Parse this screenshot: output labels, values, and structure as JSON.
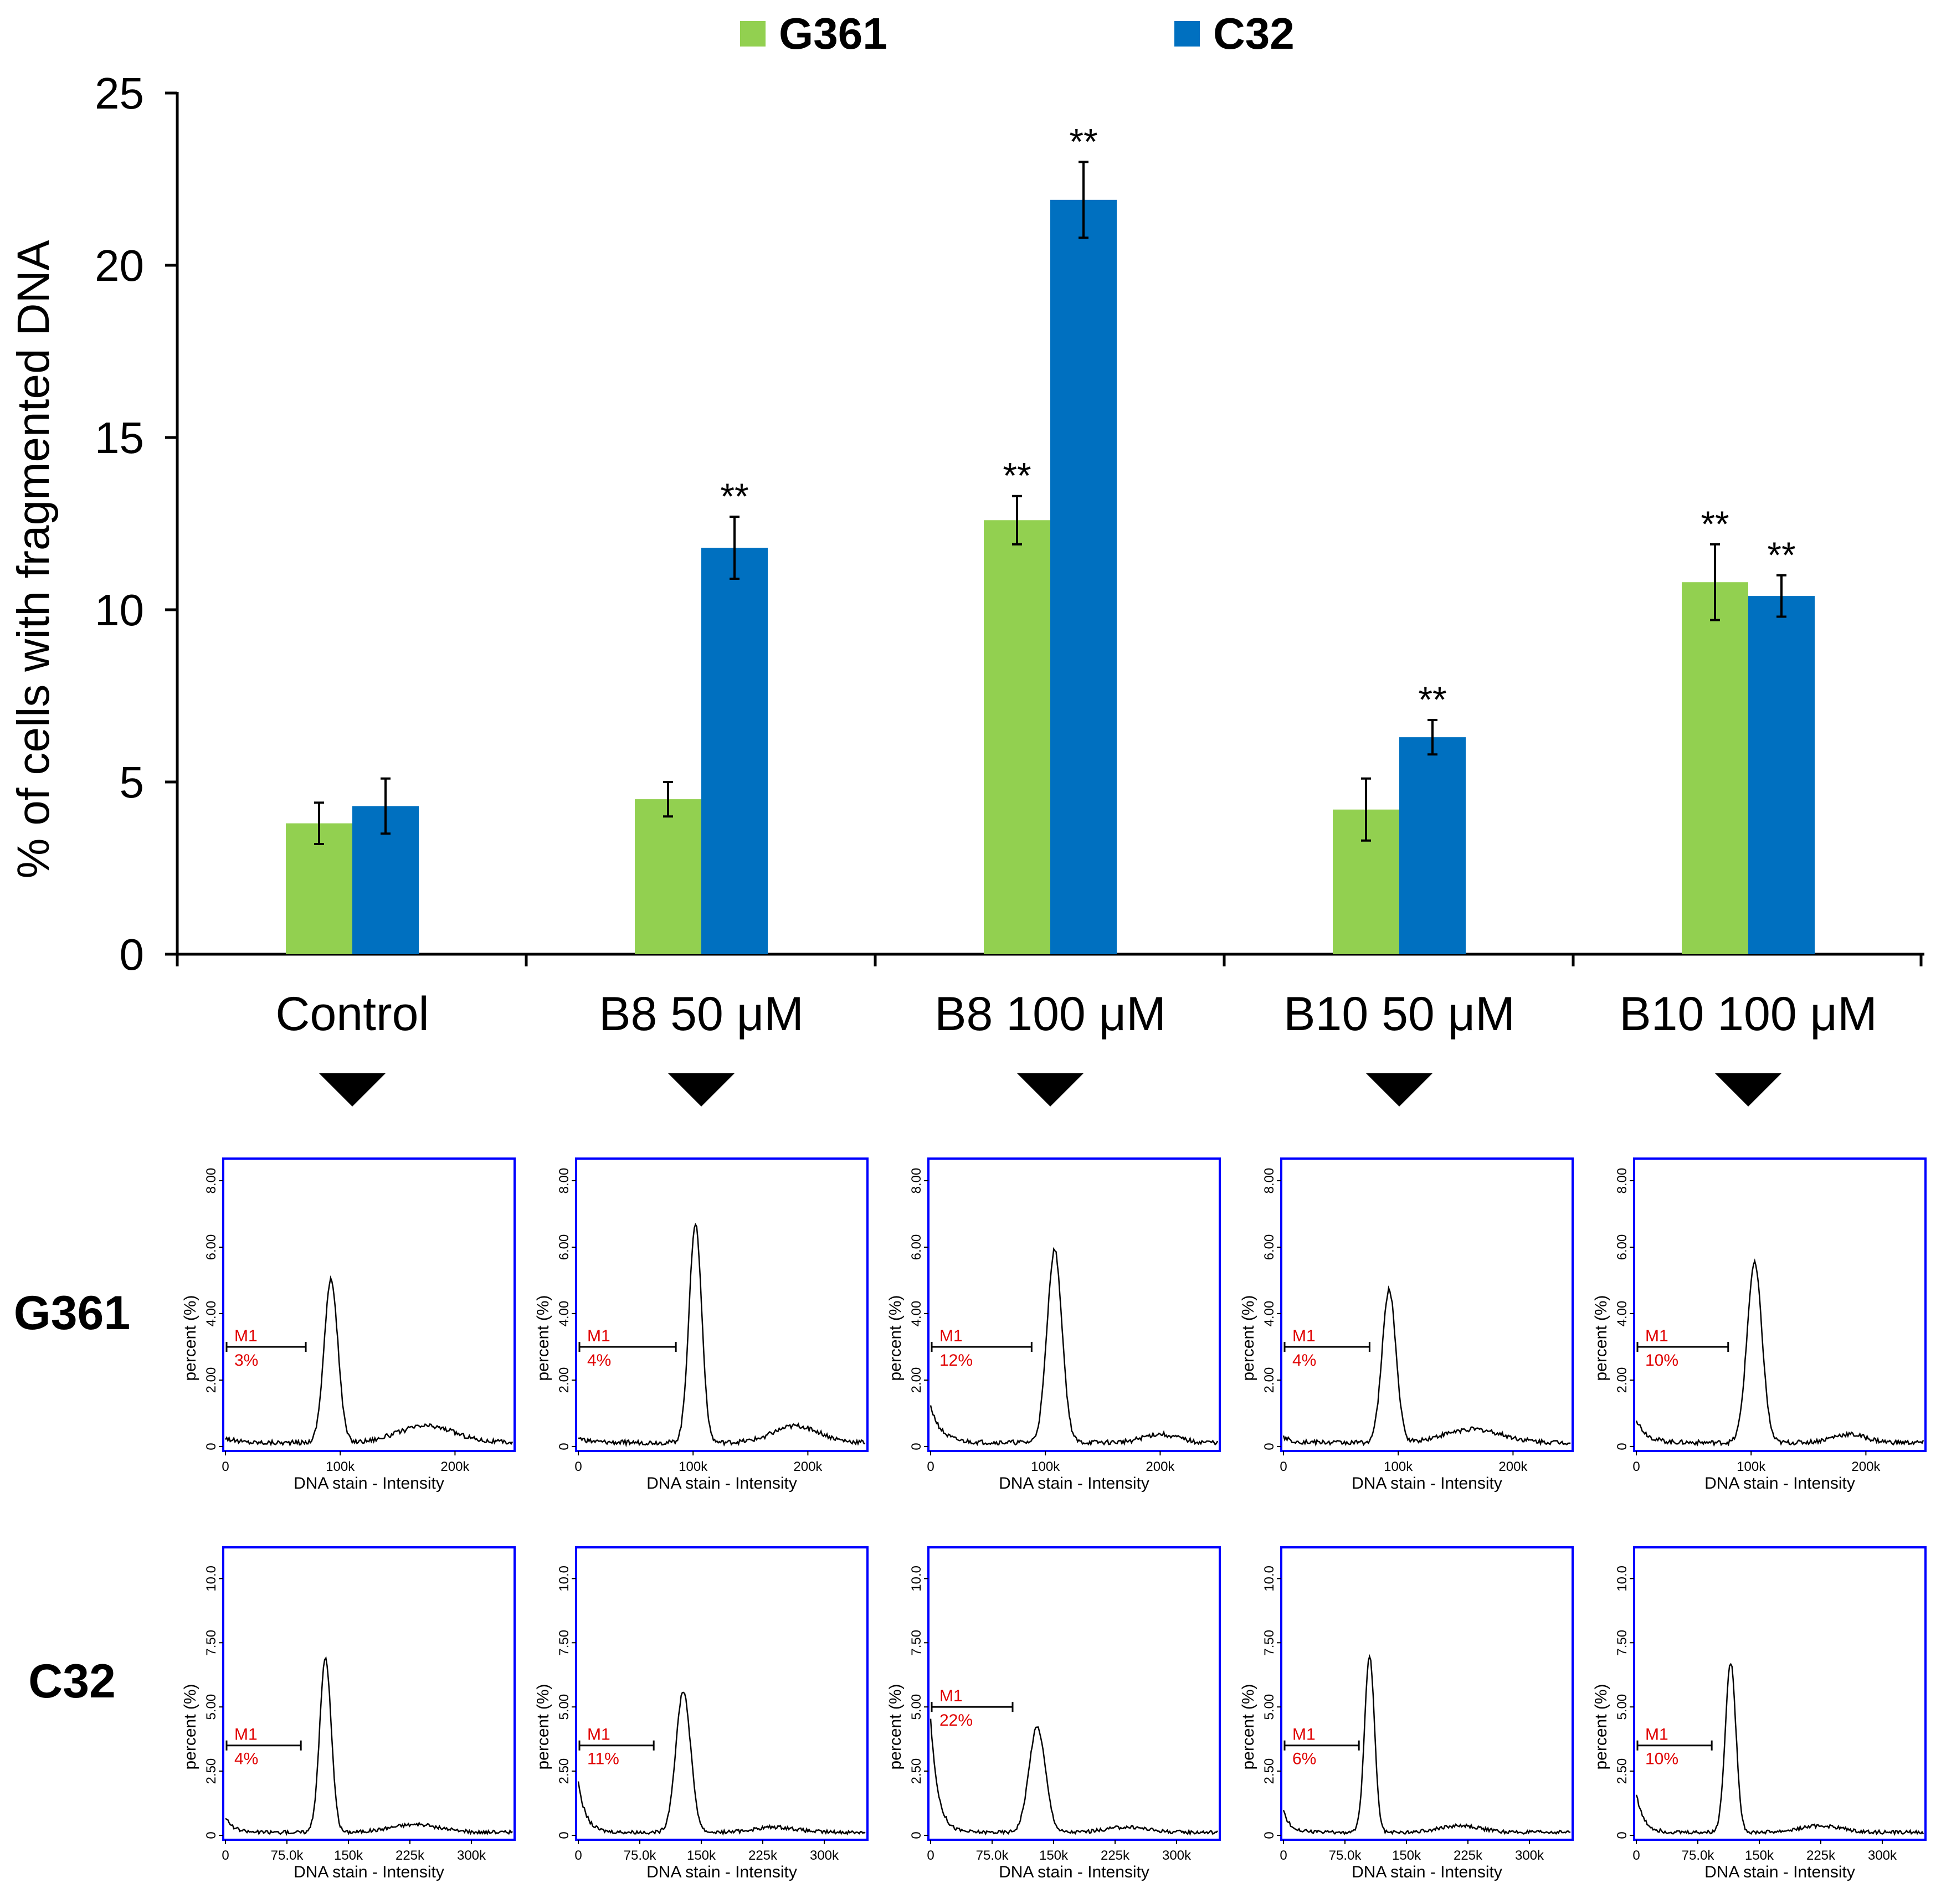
{
  "colors": {
    "g361": "#92d050",
    "c32": "#0070c0",
    "axis": "#000000",
    "panel_border": "#0000ff",
    "marker_text": "#e00000"
  },
  "legend": {
    "items": [
      {
        "name": "G361",
        "color": "#92d050"
      },
      {
        "name": "C32",
        "color": "#0070c0"
      }
    ]
  },
  "chart_data": [
    {
      "type": "bar",
      "title": "",
      "xlabel": "",
      "ylabel": "% of cells with fragmented DNA",
      "ylim": [
        0,
        25
      ],
      "yticks": [
        "0",
        "5",
        "10",
        "15",
        "20",
        "25"
      ],
      "categories": [
        "Control",
        "B8 50 μM",
        "B8 100 μM",
        "B10 50 μM",
        "B10 100 μM"
      ],
      "series": [
        {
          "name": "G361",
          "color": "#92d050",
          "values": [
            3.8,
            4.5,
            12.6,
            4.2,
            10.8
          ],
          "errors": [
            0.6,
            0.5,
            0.7,
            0.9,
            1.1
          ],
          "significance": [
            "",
            "",
            "**",
            "",
            "**"
          ]
        },
        {
          "name": "C32",
          "color": "#0070c0",
          "values": [
            4.3,
            11.8,
            21.9,
            6.3,
            10.4
          ],
          "errors": [
            0.8,
            0.9,
            1.1,
            0.5,
            0.6
          ],
          "significance": [
            "",
            "**",
            "**",
            "**",
            "**"
          ]
        }
      ],
      "legend_position": "top-center"
    },
    {
      "type": "histogram",
      "row_label": "G361",
      "xlabel": "DNA stain - Intensity",
      "ylabel": "percent (%)",
      "xlim": [
        0,
        250000
      ],
      "xticks": [
        {
          "value": 0,
          "label": "0"
        },
        {
          "value": 100000,
          "label": "100k"
        },
        {
          "value": 200000,
          "label": "200k"
        }
      ],
      "ylim": [
        0,
        8.5
      ],
      "yticks": [
        {
          "value": 0,
          "label": "0"
        },
        {
          "value": 2,
          "label": "2.00"
        },
        {
          "value": 4,
          "label": "4.00"
        },
        {
          "value": 6,
          "label": "6.00"
        },
        {
          "value": 8,
          "label": "8.00"
        }
      ],
      "gate_label": "M1",
      "panels": [
        {
          "condition": "Control",
          "gate_percent": "3%",
          "gate_end": 70000,
          "gate_y": 3.0,
          "peaks": [
            {
              "mu": 92000,
              "sigma": 6000,
              "h": 4.9
            },
            {
              "mu": 175000,
              "sigma": 25000,
              "h": 0.5
            }
          ],
          "debris": 0.15
        },
        {
          "condition": "B8 50 μM",
          "gate_percent": "4%",
          "gate_end": 85000,
          "gate_y": 3.0,
          "peaks": [
            {
              "mu": 102000,
              "sigma": 5500,
              "h": 6.6
            },
            {
              "mu": 190000,
              "sigma": 20000,
              "h": 0.5
            }
          ],
          "debris": 0.15
        },
        {
          "condition": "B8 100 μM",
          "gate_percent": "12%",
          "gate_end": 88000,
          "gate_y": 3.0,
          "peaks": [
            {
              "mu": 108000,
              "sigma": 6500,
              "h": 5.8
            },
            {
              "mu": 200000,
              "sigma": 15000,
              "h": 0.25
            }
          ],
          "debris": 1.1
        },
        {
          "condition": "B10 50 μM",
          "gate_percent": "4%",
          "gate_end": 75000,
          "gate_y": 3.0,
          "peaks": [
            {
              "mu": 92000,
              "sigma": 6000,
              "h": 4.6
            },
            {
              "mu": 165000,
              "sigma": 25000,
              "h": 0.4
            }
          ],
          "debris": 0.15
        },
        {
          "condition": "B10 100 μM",
          "gate_percent": "10%",
          "gate_end": 80000,
          "gate_y": 3.0,
          "peaks": [
            {
              "mu": 103000,
              "sigma": 6500,
              "h": 5.4
            },
            {
              "mu": 185000,
              "sigma": 15000,
              "h": 0.25
            }
          ],
          "debris": 0.7
        }
      ]
    },
    {
      "type": "histogram",
      "row_label": "C32",
      "xlabel": "DNA stain - Intensity",
      "ylabel": "percent (%)",
      "xlim": [
        0,
        350000
      ],
      "xticks": [
        {
          "value": 0,
          "label": "0"
        },
        {
          "value": 75000,
          "label": "75.0k"
        },
        {
          "value": 150000,
          "label": "150k"
        },
        {
          "value": 225000,
          "label": "225k"
        },
        {
          "value": 300000,
          "label": "300k"
        }
      ],
      "ylim": [
        0,
        11
      ],
      "yticks": [
        {
          "value": 0,
          "label": "0"
        },
        {
          "value": 2.5,
          "label": "2.50"
        },
        {
          "value": 5,
          "label": "5.00"
        },
        {
          "value": 7.5,
          "label": "7.50"
        },
        {
          "value": 10,
          "label": "10.0"
        }
      ],
      "gate_label": "M1",
      "panels": [
        {
          "condition": "Control",
          "gate_percent": "4%",
          "gate_end": 92000,
          "gate_y": 3.5,
          "peaks": [
            {
              "mu": 122000,
              "sigma": 7000,
              "h": 6.8
            },
            {
              "mu": 230000,
              "sigma": 30000,
              "h": 0.3
            }
          ],
          "debris": 0.6
        },
        {
          "condition": "B8 50 μM",
          "gate_percent": "11%",
          "gate_end": 92000,
          "gate_y": 3.5,
          "peaks": [
            {
              "mu": 128000,
              "sigma": 9000,
              "h": 5.5
            },
            {
              "mu": 240000,
              "sigma": 25000,
              "h": 0.2
            }
          ],
          "debris": 2.0
        },
        {
          "condition": "B8 100 μM",
          "gate_percent": "22%",
          "gate_end": 100000,
          "gate_y": 5.0,
          "peaks": [
            {
              "mu": 130000,
              "sigma": 10000,
              "h": 4.1
            },
            {
              "mu": 240000,
              "sigma": 25000,
              "h": 0.2
            }
          ],
          "debris": 4.4
        },
        {
          "condition": "B10 50 μM",
          "gate_percent": "6%",
          "gate_end": 92000,
          "gate_y": 3.5,
          "peaks": [
            {
              "mu": 105000,
              "sigma": 6000,
              "h": 6.9
            },
            {
              "mu": 215000,
              "sigma": 25000,
              "h": 0.25
            }
          ],
          "debris": 0.8
        },
        {
          "condition": "B10 100 μM",
          "gate_percent": "10%",
          "gate_end": 92000,
          "gate_y": 3.5,
          "peaks": [
            {
              "mu": 115000,
              "sigma": 6500,
              "h": 6.6
            },
            {
              "mu": 225000,
              "sigma": 25000,
              "h": 0.25
            }
          ],
          "debris": 1.5
        }
      ]
    }
  ]
}
